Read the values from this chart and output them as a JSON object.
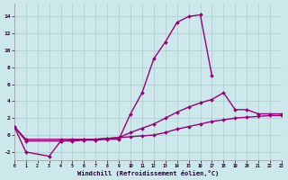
{
  "xlabel": "Windchill (Refroidissement éolien,°C)",
  "xlim": [
    0,
    23
  ],
  "ylim": [
    -3.0,
    15.5
  ],
  "yticks": [
    -2,
    0,
    2,
    4,
    6,
    8,
    10,
    12,
    14
  ],
  "xticks": [
    0,
    1,
    2,
    3,
    4,
    5,
    6,
    7,
    8,
    9,
    10,
    11,
    12,
    13,
    14,
    15,
    16,
    17,
    18,
    19,
    20,
    21,
    22,
    23
  ],
  "bg_color": "#cce8ea",
  "grid_color": "#aacccc",
  "line_color": "#990077",
  "series": [
    {
      "x": [
        0,
        1,
        3,
        4,
        5,
        6,
        7,
        8,
        9,
        10,
        11,
        12,
        13,
        14,
        15,
        16,
        17
      ],
      "y": [
        1.0,
        -2.0,
        -2.5,
        -0.7,
        -0.7,
        -0.6,
        -0.6,
        -0.5,
        -0.5,
        2.5,
        5.0,
        9.0,
        11.0,
        13.3,
        14.0,
        14.2,
        7.0
      ],
      "marker": "D",
      "markersize": 2.0,
      "linewidth": 1.0,
      "linestyle": "-"
    },
    {
      "x": [
        0,
        1,
        4,
        5,
        6,
        7,
        8,
        9,
        10,
        11,
        12,
        13,
        14,
        15,
        16,
        17,
        18,
        19,
        20,
        21,
        22,
        23
      ],
      "y": [
        1.0,
        -0.7,
        -0.7,
        -0.6,
        -0.5,
        -0.5,
        -0.4,
        -0.3,
        0.3,
        0.8,
        1.3,
        2.0,
        2.7,
        3.3,
        3.8,
        4.2,
        5.0,
        3.0,
        3.0,
        2.5,
        2.5,
        2.5
      ],
      "marker": "D",
      "markersize": 2.0,
      "linewidth": 1.0,
      "linestyle": "-"
    },
    {
      "x": [
        0,
        1,
        4,
        5,
        6,
        7,
        8,
        9,
        10,
        11,
        12,
        13,
        14,
        15,
        16,
        17,
        18,
        19,
        20,
        21,
        22,
        23
      ],
      "y": [
        1.0,
        -0.5,
        -0.5,
        -0.5,
        -0.5,
        -0.5,
        -0.4,
        -0.3,
        -0.2,
        -0.1,
        0.0,
        0.3,
        0.7,
        1.0,
        1.3,
        1.6,
        1.8,
        2.0,
        2.1,
        2.2,
        2.3,
        2.3
      ],
      "marker": "D",
      "markersize": 2.0,
      "linewidth": 1.0,
      "linestyle": "-"
    }
  ]
}
